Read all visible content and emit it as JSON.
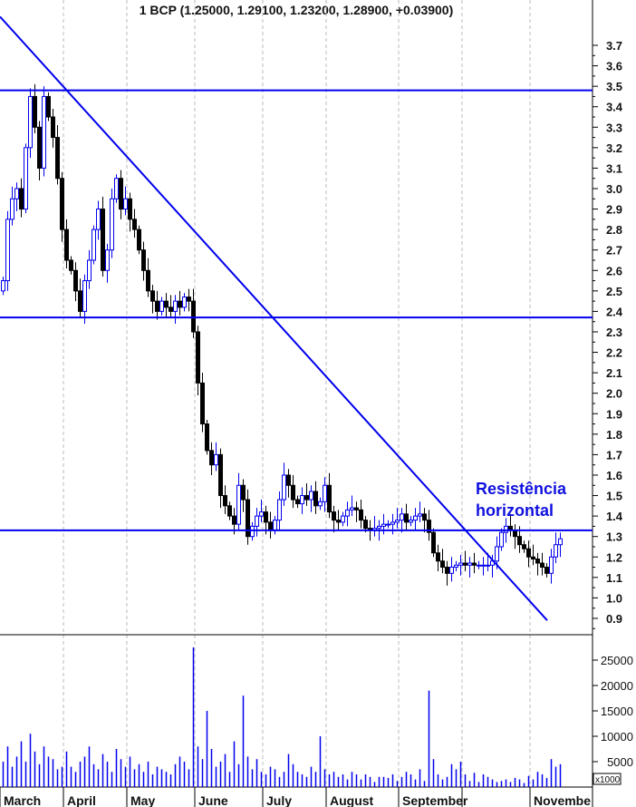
{
  "chart_data": {
    "type": "candlestick",
    "title": "1 BCP (1.25000, 1.29100, 1.23200, 1.28900, +0.03900)",
    "price_axis": {
      "ylim": [
        0.85,
        3.82
      ],
      "ticks": [
        0.9,
        1.0,
        1.1,
        1.2,
        1.3,
        1.4,
        1.5,
        1.6,
        1.7,
        1.8,
        1.9,
        2.0,
        2.1,
        2.2,
        2.3,
        2.4,
        2.5,
        2.6,
        2.7,
        2.8,
        2.9,
        3.0,
        3.1,
        3.2,
        3.3,
        3.4,
        3.5,
        3.6,
        3.7
      ],
      "position": "right"
    },
    "volume_axis": {
      "ylim": [
        0,
        30000
      ],
      "ticks": [
        5000,
        10000,
        15000,
        20000,
        25000
      ],
      "unit_label": "x1000"
    },
    "months": [
      {
        "label": "March",
        "bar": 0
      },
      {
        "label": "April",
        "bar": 14
      },
      {
        "label": "May",
        "bar": 28
      },
      {
        "label": "June",
        "bar": 43
      },
      {
        "label": "July",
        "bar": 58
      },
      {
        "label": "August",
        "bar": 72
      },
      {
        "label": "September",
        "bar": 88
      },
      {
        "label": "",
        "bar": 102
      },
      {
        "label": "Novembe",
        "bar": 117
      }
    ],
    "close": [
      2.55,
      2.85,
      2.95,
      3.0,
      2.9,
      3.2,
      3.45,
      3.3,
      3.1,
      3.45,
      3.35,
      3.25,
      3.05,
      2.8,
      2.65,
      2.6,
      2.5,
      2.4,
      2.55,
      2.65,
      2.8,
      2.9,
      2.6,
      2.7,
      2.95,
      3.05,
      2.9,
      2.95,
      2.85,
      2.8,
      2.7,
      2.6,
      2.5,
      2.45,
      2.4,
      2.45,
      2.42,
      2.4,
      2.45,
      2.42,
      2.47,
      2.45,
      2.3,
      2.05,
      1.85,
      1.72,
      1.65,
      1.7,
      1.5,
      1.45,
      1.4,
      1.36,
      1.55,
      1.48,
      1.3,
      1.35,
      1.4,
      1.42,
      1.37,
      1.33,
      1.38,
      1.48,
      1.6,
      1.55,
      1.48,
      1.46,
      1.5,
      1.48,
      1.52,
      1.45,
      1.47,
      1.55,
      1.42,
      1.38,
      1.37,
      1.4,
      1.43,
      1.44,
      1.43,
      1.38,
      1.34,
      1.33,
      1.34,
      1.35,
      1.36,
      1.36,
      1.37,
      1.38,
      1.41,
      1.37,
      1.38,
      1.4,
      1.41,
      1.38,
      1.32,
      1.22,
      1.18,
      1.15,
      1.12,
      1.15,
      1.16,
      1.17,
      1.16,
      1.17,
      1.16,
      1.16,
      1.16,
      1.16,
      1.18,
      1.25,
      1.32,
      1.35,
      1.33,
      1.3,
      1.26,
      1.24,
      1.2,
      1.19,
      1.17,
      1.15,
      1.12,
      1.2,
      1.26,
      1.289
    ],
    "volume": [
      5000,
      8000,
      4000,
      6000,
      9000,
      5000,
      10500,
      7000,
      4500,
      8000,
      6000,
      5500,
      3500,
      4000,
      7000,
      4000,
      3000,
      5000,
      6000,
      8000,
      4500,
      3500,
      6500,
      5000,
      3000,
      7500,
      5500,
      4000,
      6000,
      3500,
      4500,
      3000,
      5000,
      2500,
      4000,
      3500,
      3000,
      2500,
      4500,
      6000,
      5000,
      3500,
      27500,
      8000,
      5500,
      15000,
      7500,
      4000,
      5000,
      6500,
      3000,
      9000,
      4500,
      18000,
      6000,
      3500,
      5500,
      3000,
      2500,
      4000,
      3500,
      2000,
      3000,
      6500,
      4500,
      3000,
      2500,
      2000,
      4000,
      3000,
      10000,
      3500,
      2500,
      3000,
      2000,
      2500,
      1500,
      3000,
      2500,
      1500,
      2500,
      2000,
      1000,
      2000,
      2000,
      1800,
      2500,
      1200,
      2000,
      3000,
      2500,
      1500,
      3500,
      1200,
      19000,
      5500,
      2500,
      1500,
      2000,
      4500,
      3500,
      5000,
      2500,
      1200,
      2800,
      1000,
      2500,
      2000,
      1500,
      1000,
      1200,
      1500,
      1000,
      1800,
      1500,
      800,
      2200,
      1500,
      3000,
      2500,
      1800,
      5500,
      4000,
      4500
    ],
    "lines": {
      "horizontal": [
        3.48,
        2.37,
        1.33
      ],
      "trendline": {
        "start": {
          "bar": -0.4,
          "price": 3.84
        },
        "end": {
          "bar": 120.4,
          "price": 0.89
        }
      }
    },
    "annotation": {
      "line1": "Resistência",
      "line2": "horizontal",
      "color": "#1010e0"
    },
    "colors": {
      "up": "#0000ee",
      "down": "#000000",
      "lines": "#0000ee",
      "volume": "#0000ee",
      "grid": "#bbbbbb"
    },
    "grid": "vertical dashed at month boundaries"
  }
}
